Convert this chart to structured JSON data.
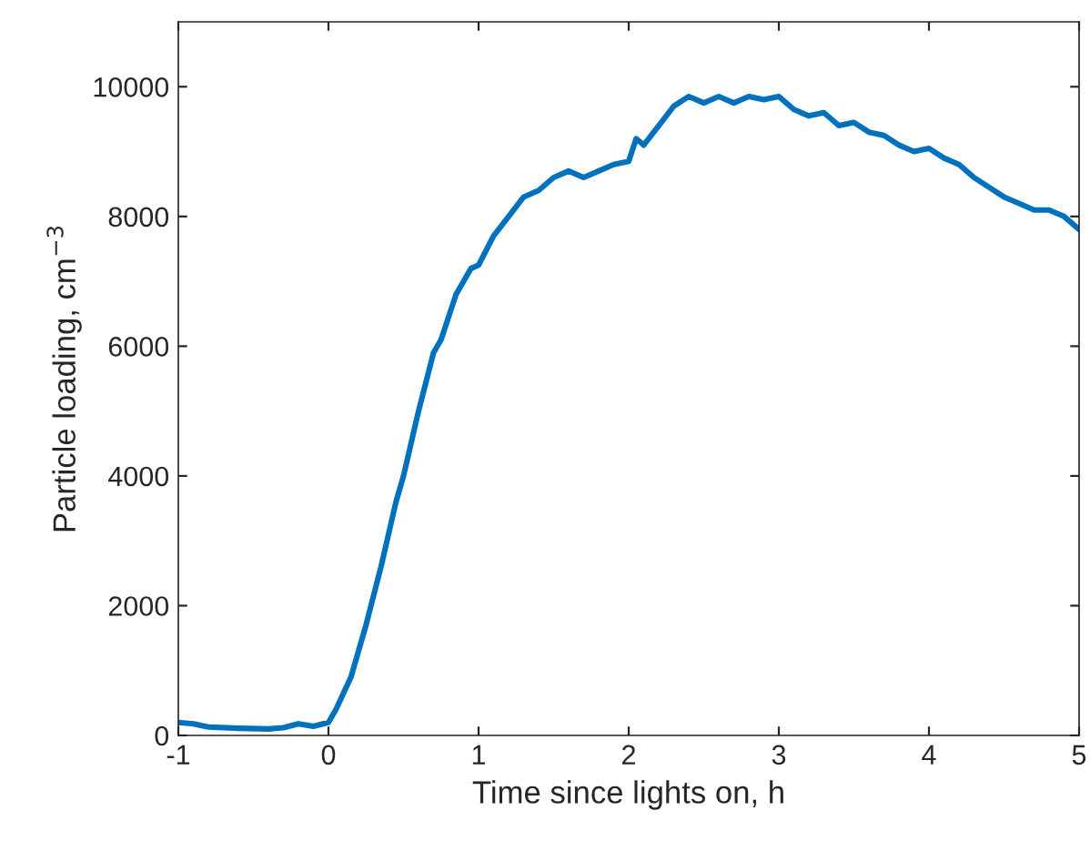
{
  "chart_data": {
    "type": "line",
    "xlabel": "Time since lights on, h",
    "ylabel": "Particle loading, cm$^{−3}$",
    "xlim": [
      -1,
      5
    ],
    "xticks": [
      -1,
      0,
      1,
      2,
      3,
      4,
      5
    ],
    "ylim": [
      0,
      11000
    ],
    "yticks": [
      0,
      2000,
      4000,
      6000,
      8000,
      10000
    ],
    "grid": false,
    "line_style": "solid",
    "series": [
      {
        "color": "#0072bd",
        "x": [
          -1,
          -0.9,
          -0.8,
          -0.6,
          -0.4,
          -0.3,
          -0.2,
          -0.1,
          0,
          0.05,
          0.15,
          0.25,
          0.35,
          0.45,
          0.5,
          0.6,
          0.7,
          0.75,
          0.85,
          0.95,
          1.0,
          1.1,
          1.2,
          1.3,
          1.4,
          1.5,
          1.6,
          1.7,
          1.8,
          1.9,
          2.0,
          2.05,
          2.1,
          2.2,
          2.3,
          2.4,
          2.5,
          2.6,
          2.7,
          2.8,
          2.9,
          3.0,
          3.1,
          3.2,
          3.3,
          3.4,
          3.5,
          3.6,
          3.7,
          3.8,
          3.9,
          4.0,
          4.1,
          4.2,
          4.3,
          4.4,
          4.5,
          4.6,
          4.7,
          4.8,
          4.9,
          5.0
        ],
        "values": [
          200,
          180,
          130,
          110,
          100,
          120,
          180,
          140,
          200,
          400,
          900,
          1700,
          2600,
          3600,
          4000,
          5000,
          5900,
          6100,
          6800,
          7200,
          7250,
          7700,
          8000,
          8300,
          8400,
          8600,
          8700,
          8600,
          8700,
          8800,
          8850,
          9200,
          9100,
          9400,
          9700,
          9850,
          9750,
          9850,
          9750,
          9850,
          9800,
          9850,
          9650,
          9550,
          9600,
          9400,
          9450,
          9300,
          9250,
          9100,
          9000,
          9050,
          8900,
          8800,
          8600,
          8450,
          8300,
          8200,
          8100,
          8100,
          8000,
          7800
        ]
      }
    ]
  }
}
